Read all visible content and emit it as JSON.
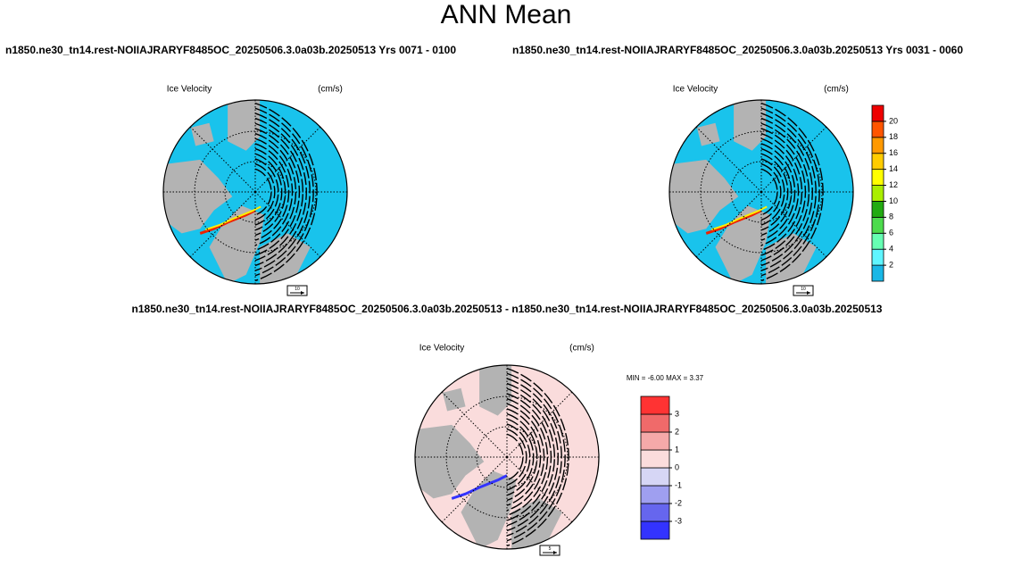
{
  "title": "ANN Mean",
  "panels": [
    {
      "case_title": "n1850.ne30_tn14.rest-NOIIAJRARYF8485OC_20250506.3.0a03b.20250513  Yrs 0071 - 0100",
      "field": "Ice Velocity",
      "units": "(cm/s)",
      "vector_ref": "10"
    },
    {
      "case_title": "n1850.ne30_tn14.rest-NOIIAJRARYF8485OC_20250506.3.0a03b.20250513  Yrs 0031 - 0060",
      "field": "Ice Velocity",
      "units": "(cm/s)",
      "vector_ref": "10"
    },
    {
      "case_title": "n1850.ne30_tn14.rest-NOIIAJRARYF8485OC_20250506.3.0a03b.20250513 - n1850.ne30_tn14.rest-NOIIAJRARYF8485OC_20250506.3.0a03b.20250513",
      "field": "Ice Velocity",
      "units": "(cm/s)",
      "vector_ref": "5",
      "min_max": "MIN =  -6.00 MAX =   3.37"
    }
  ],
  "colorbars": [
    {
      "ticks": [
        2,
        4,
        6,
        8,
        10,
        12,
        14,
        16,
        18,
        20
      ],
      "colors": [
        "#19b7e6",
        "#5ff5ff",
        "#66ffb3",
        "#4ddb4d",
        "#22aa11",
        "#aaee00",
        "#ffff00",
        "#ffcc00",
        "#ff9900",
        "#ff5500",
        "#ee0000"
      ]
    },
    {
      "ticks": [
        -3,
        -2,
        -1,
        0,
        1,
        2,
        3
      ],
      "colors": [
        "#3333ff",
        "#6666ee",
        "#9f9ff0",
        "#d6d6f5",
        "#fbdcdc",
        "#f5a9a9",
        "#f06a6a",
        "#ff3333"
      ]
    }
  ]
}
